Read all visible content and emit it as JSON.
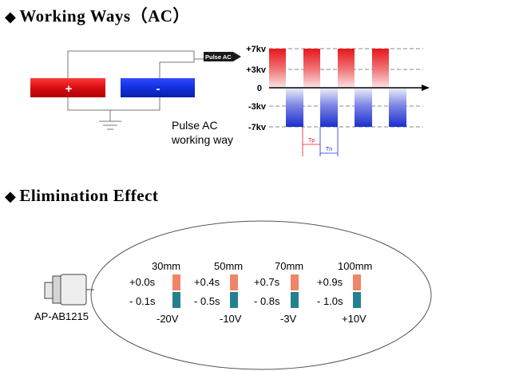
{
  "section1": {
    "bullet": "◆",
    "title": "Working Ways（AC）",
    "pulse_tag": "Pulse AC",
    "plus_sign": "+",
    "minus_sign": "-",
    "caption_line1": "Pulse AC",
    "caption_line2": "working way",
    "levels": [
      "+7kv",
      "+3kv",
      "0",
      "-3kv",
      "-7kv"
    ],
    "tp_label": "Tp",
    "tn_label": "Tn",
    "colors": {
      "positive": "#e8161b",
      "negative": "#1a2fd0"
    }
  },
  "section2": {
    "bullet": "◆",
    "title": "Elimination Effect",
    "device_label": "AP-AB1215",
    "columns": [
      {
        "distance": "30mm",
        "pos_time": "+0.0s",
        "neg_time": "- 0.1s",
        "voltage": "-20V"
      },
      {
        "distance": "50mm",
        "pos_time": "+0.4s",
        "neg_time": "- 0.5s",
        "voltage": "-10V"
      },
      {
        "distance": "70mm",
        "pos_time": "+0.7s",
        "neg_time": "- 0.8s",
        "voltage": "-3V"
      },
      {
        "distance": "100mm",
        "pos_time": "+0.9s",
        "neg_time": "- 1.0s",
        "voltage": "+10V"
      }
    ],
    "colors": {
      "positive": "#f08568",
      "negative": "#23818f"
    }
  }
}
